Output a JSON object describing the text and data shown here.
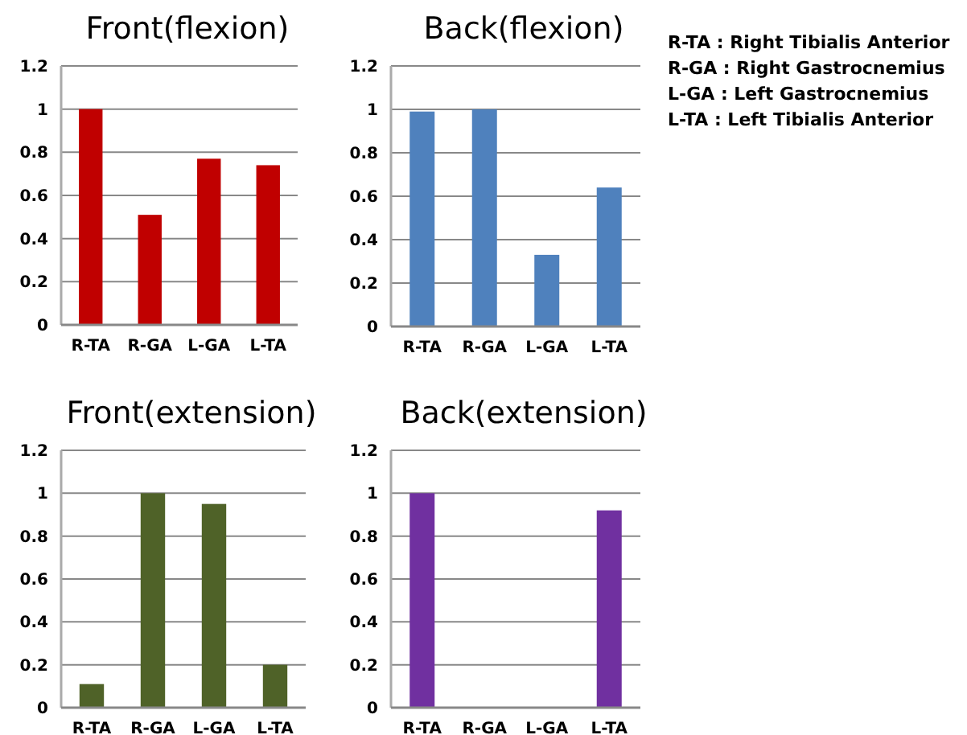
{
  "chart_data": [
    {
      "type": "bar",
      "title": "Front(flexion)",
      "categories": [
        "R-TA",
        "R-GA",
        "L-GA",
        "L-TA"
      ],
      "values": [
        1,
        0.51,
        0.77,
        0.74
      ],
      "color": "#c00000",
      "ylim": [
        0,
        1.2
      ],
      "yticks": [
        0,
        0.2,
        0.4,
        0.6,
        0.8,
        1,
        1.2
      ],
      "grid": "y"
    },
    {
      "type": "bar",
      "title": "Back(flexion)",
      "categories": [
        "R-TA",
        "R-GA",
        "L-GA",
        "L-TA"
      ],
      "values": [
        0.99,
        1,
        0.33,
        0.64
      ],
      "color": "#4f81bd",
      "ylim": [
        0,
        1.2
      ],
      "yticks": [
        0,
        0.2,
        0.4,
        0.6,
        0.8,
        1,
        1.2
      ],
      "grid": "y"
    },
    {
      "type": "bar",
      "title": "Front(extension)",
      "categories": [
        "R-TA",
        "R-GA",
        "L-GA",
        "L-TA"
      ],
      "values": [
        0.11,
        1,
        0.95,
        0.2
      ],
      "color": "#4f6228",
      "ylim": [
        0,
        1.2
      ],
      "yticks": [
        0,
        0.2,
        0.4,
        0.6,
        0.8,
        1,
        1.2
      ],
      "grid": "y"
    },
    {
      "type": "bar",
      "title": "Back(extension)",
      "categories": [
        "R-TA",
        "R-GA",
        "L-GA",
        "L-TA"
      ],
      "values": [
        1,
        0,
        0,
        0.92
      ],
      "color": "#7030a0",
      "ylim": [
        0,
        1.2
      ],
      "yticks": [
        0,
        0.2,
        0.4,
        0.6,
        0.8,
        1,
        1.2
      ],
      "grid": "y"
    },
    {
      "type": "other",
      "annotations": [
        "R-TA : Right Tibialis Anterior",
        "R-GA : Right Gastrocnemius",
        "L-GA : Left Gastrocnemius",
        "L-TA : Left Tibialis Anterior"
      ]
    }
  ]
}
